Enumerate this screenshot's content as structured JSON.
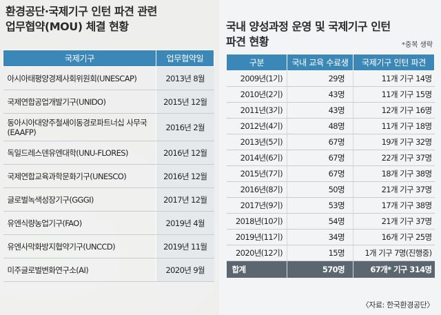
{
  "left": {
    "title_line1": "환경공단·국제기구 인턴 파견 관련",
    "title_line2": "업무협약(MOU) 체결 현황",
    "headers": [
      "국제기구",
      "업무협약일"
    ],
    "rows": [
      {
        "org": "아시아태평양경제사회위원회(UNESCAP)",
        "date": "2013년 8월"
      },
      {
        "org": "국제연합공업개발기구(UNIDO)",
        "date": "2015년 12월"
      },
      {
        "org": "동아시아대양주철새이동경로파트너십 사무국(EAAFP)",
        "date": "2016년 2월"
      },
      {
        "org": "독일드레스덴유엔대학(UNU-FLORES)",
        "date": "2016년 12월"
      },
      {
        "org": "국제연합교육과학문화기구(UNESCO)",
        "date": "2016년 12월"
      },
      {
        "org": "글로벌녹색성장기구(GGGI)",
        "date": "2017년 12월"
      },
      {
        "org": "유엔식량농업기구(FAO)",
        "date": "2019년 4월"
      },
      {
        "org": "유엔사막화방지협약기구(UNCCD)",
        "date": "2019년 11월"
      },
      {
        "org": "미주글로벌변화연구소(AI)",
        "date": "2020년 9월"
      }
    ]
  },
  "right": {
    "title_line1": "국내 양성과정 운영 및 국제기구 인턴",
    "title_line2": "파견 현황",
    "note": "*중복 생략",
    "headers": [
      "구분",
      "국내 교육 수료생",
      "국제기구 인턴 파견"
    ],
    "rows": [
      {
        "year": "2009년(1기)",
        "grads": "29명",
        "dispatch": "11개 기구 14명"
      },
      {
        "year": "2010년(2기)",
        "grads": "43명",
        "dispatch": "11개 기구 15명"
      },
      {
        "year": "2011년(3기)",
        "grads": "43명",
        "dispatch": "12개 기구 16명"
      },
      {
        "year": "2012년(4기)",
        "grads": "48명",
        "dispatch": "11개 기구 18명"
      },
      {
        "year": "2013년(5기)",
        "grads": "67명",
        "dispatch": "19개 기구 32명"
      },
      {
        "year": "2014년(6기)",
        "grads": "67명",
        "dispatch": "22개 기구 37명"
      },
      {
        "year": "2015년(7기)",
        "grads": "67명",
        "dispatch": "18개 기구 38명"
      },
      {
        "year": "2016년(8기)",
        "grads": "50명",
        "dispatch": "21개 기구 37명"
      },
      {
        "year": "2017년(9기)",
        "grads": "53명",
        "dispatch": "17개 기구 38명"
      },
      {
        "year": "2018년(10기)",
        "grads": "54명",
        "dispatch": "21개 기구 37명"
      },
      {
        "year": "2019년(11기)",
        "grads": "34명",
        "dispatch": "16개 기구 25명"
      },
      {
        "year": "2020년(12기)",
        "grads": "15명",
        "dispatch": "1개 기구 7명(진행중)"
      }
    ],
    "total": {
      "label": "합계",
      "grads": "570명",
      "dispatch": "67개* 기구 314명"
    }
  },
  "source": "〈자료: 한국환경공단〉"
}
